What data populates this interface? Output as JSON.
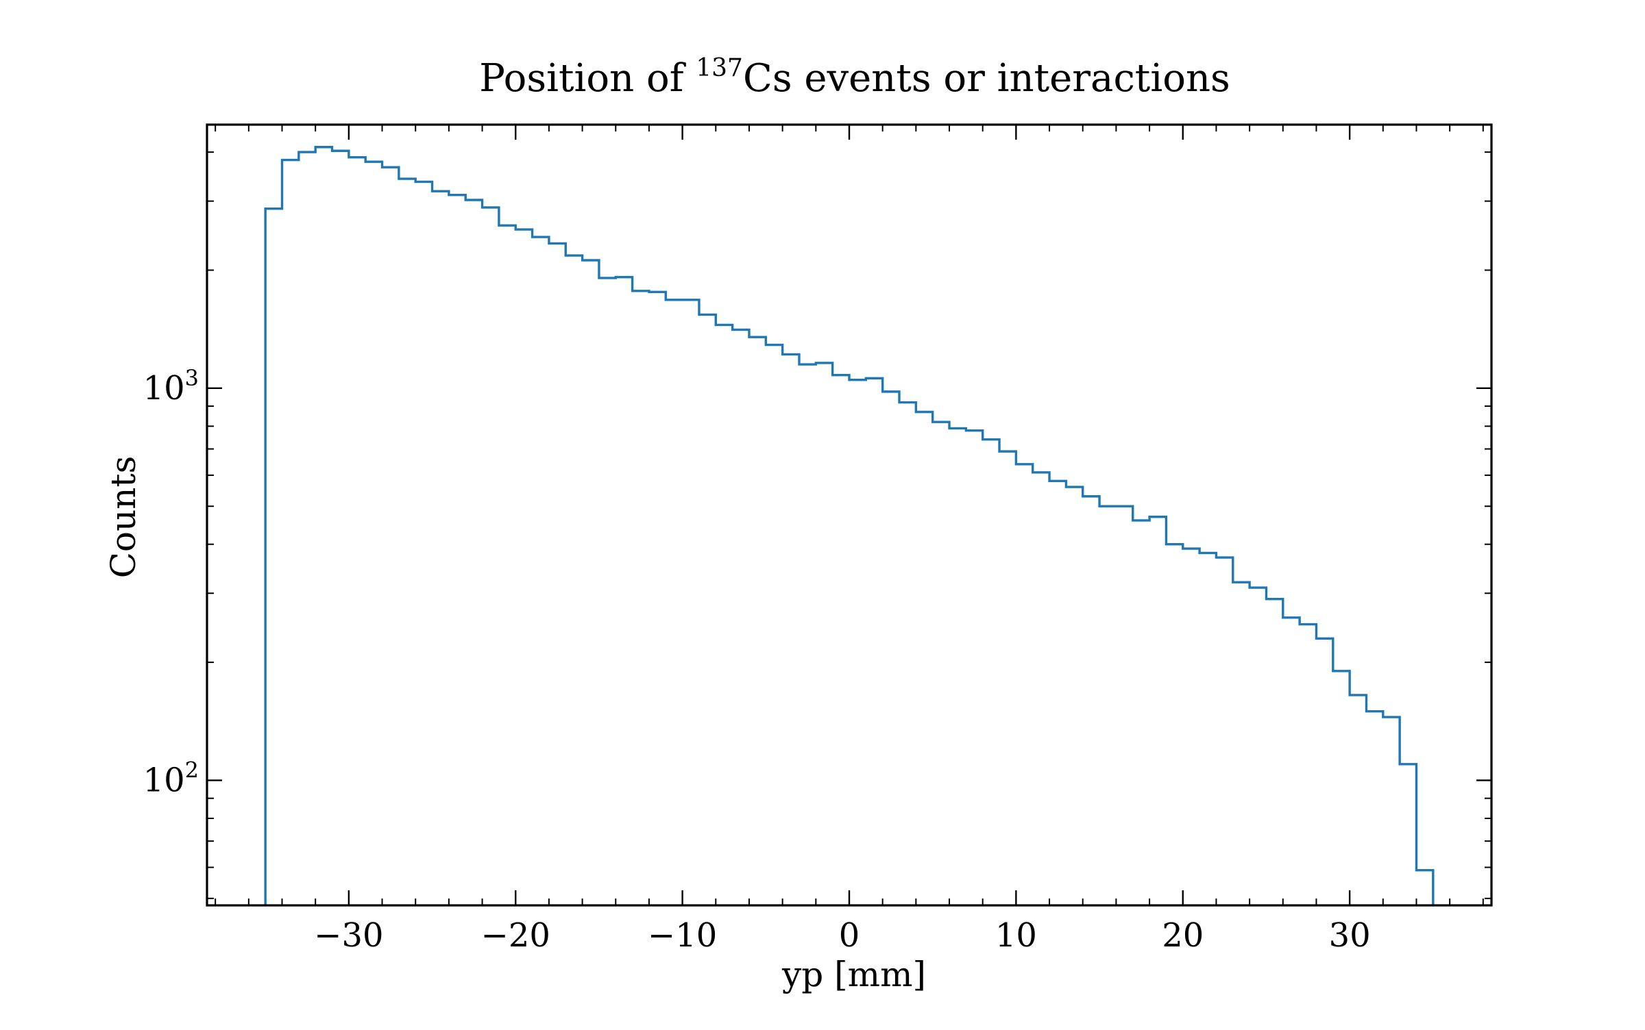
{
  "chart_data": {
    "type": "histogram",
    "title": {
      "prefix": "Position of ",
      "superscript": "137",
      "suffix": "Cs events or interactions"
    },
    "xlabel": "yp [mm]",
    "ylabel": "Counts",
    "x_scale": "linear",
    "y_scale": "log",
    "xlim": [
      -38.5,
      38.5
    ],
    "ylim": [
      48,
      4700
    ],
    "x_ticks": [
      -30,
      -20,
      -10,
      0,
      10,
      20,
      30
    ],
    "x_tick_labels": [
      "−30",
      "−20",
      "−10",
      "0",
      "10",
      "20",
      "30"
    ],
    "y_ticks": [
      {
        "value": 100,
        "base": "10",
        "exp": "2"
      },
      {
        "value": 1000,
        "base": "10",
        "exp": "3"
      }
    ],
    "grid": false,
    "legend": "none",
    "line_color": "#1f77b4",
    "bin_edges": [
      -35,
      -34,
      -33,
      -32,
      -31,
      -30,
      -29,
      -28,
      -27,
      -26,
      -25,
      -24,
      -23,
      -22,
      -21,
      -20,
      -19,
      -18,
      -17,
      -16,
      -15,
      -14,
      -13,
      -12,
      -11,
      -10,
      -9,
      -8,
      -7,
      -6,
      -5,
      -4,
      -3,
      -2,
      -1,
      0,
      1,
      2,
      3,
      4,
      5,
      6,
      7,
      8,
      9,
      10,
      11,
      12,
      13,
      14,
      15,
      16,
      17,
      18,
      19,
      20,
      21,
      22,
      23,
      24,
      25,
      26,
      27,
      28,
      29,
      30,
      31,
      32,
      33,
      34,
      35
    ],
    "counts": [
      2870,
      3820,
      4000,
      4120,
      4030,
      3880,
      3780,
      3660,
      3420,
      3360,
      3180,
      3110,
      3020,
      2890,
      2600,
      2540,
      2430,
      2340,
      2180,
      2120,
      1910,
      1920,
      1770,
      1760,
      1680,
      1680,
      1540,
      1450,
      1410,
      1350,
      1290,
      1220,
      1150,
      1160,
      1080,
      1050,
      1060,
      980,
      920,
      870,
      820,
      790,
      780,
      740,
      690,
      640,
      610,
      580,
      560,
      530,
      500,
      500,
      460,
      470,
      400,
      390,
      380,
      370,
      320,
      310,
      290,
      260,
      250,
      230,
      190,
      165,
      150,
      145,
      110,
      59
    ]
  }
}
